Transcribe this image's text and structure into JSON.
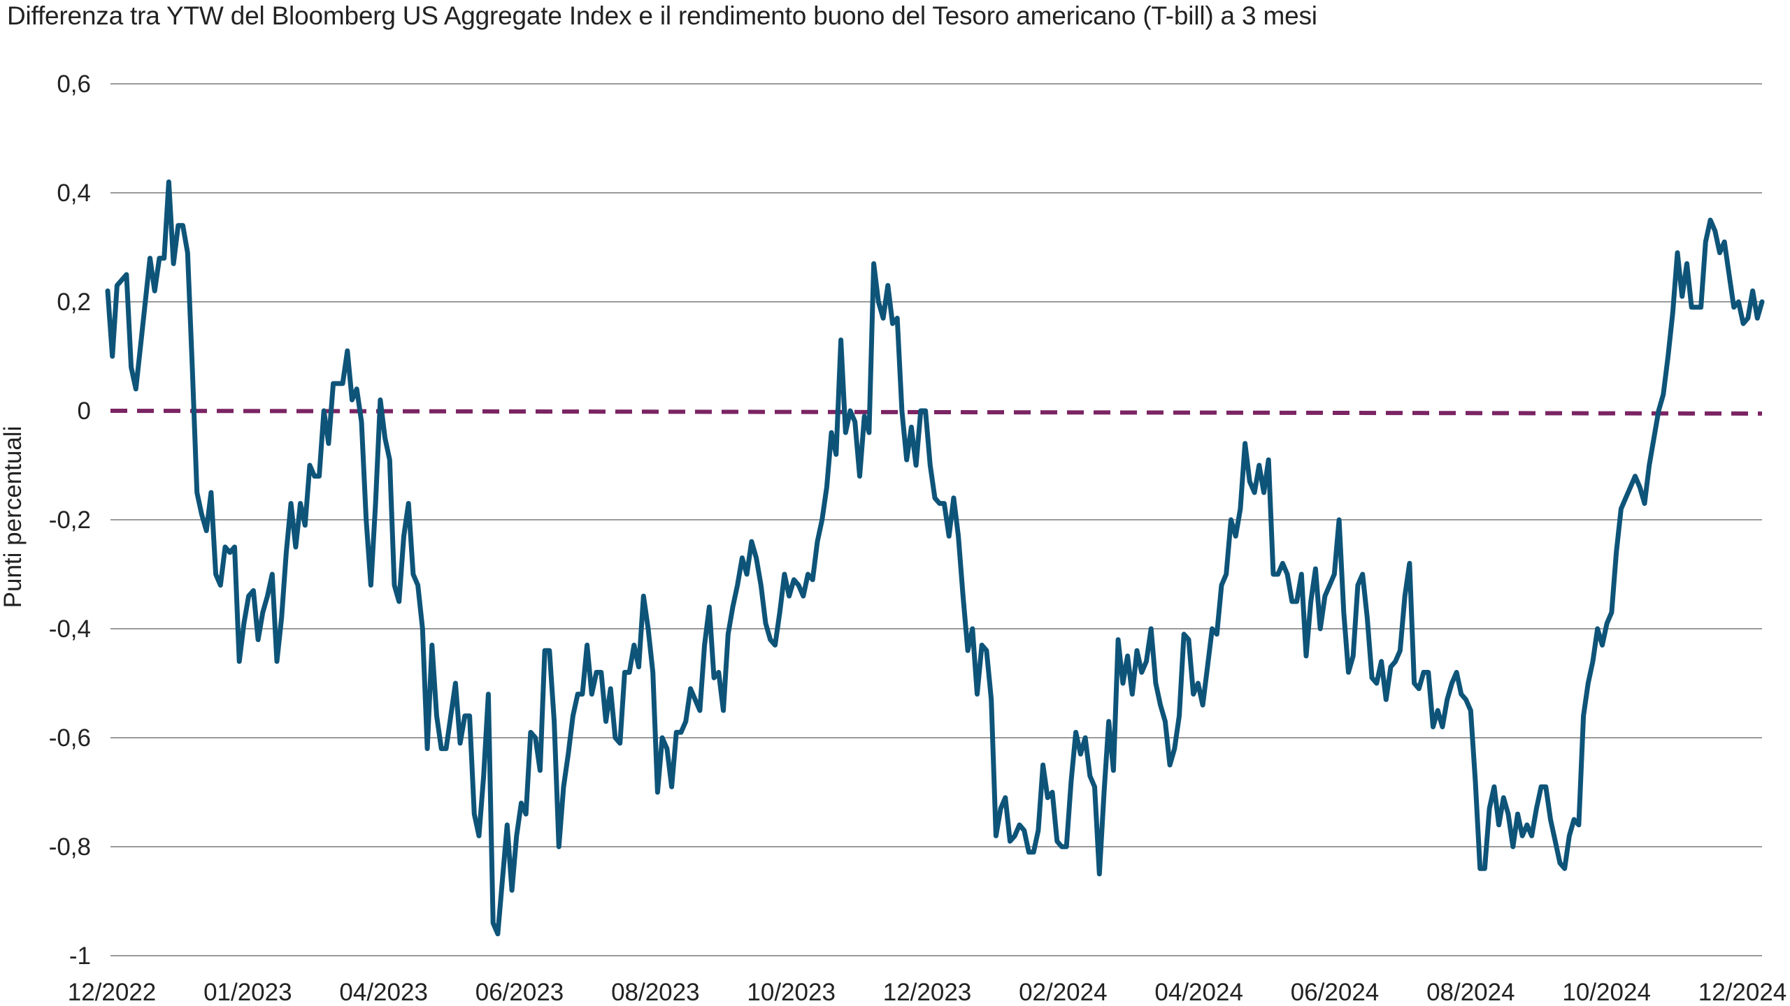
{
  "chart_data": {
    "type": "line",
    "title": "Differenza tra YTW del Bloomberg US Aggregate Index e il rendimento buono del Tesoro americano (T-bill) a 3 mesi",
    "ylabel": "Punti percentuali",
    "xlabel": "",
    "ylim": [
      -1,
      0.6
    ],
    "yticks": [
      0.6,
      0.4,
      0.2,
      0,
      -0.2,
      -0.4,
      -0.6,
      -0.8,
      -1
    ],
    "ytick_labels": [
      "0,6",
      "0,4",
      "0,2",
      "0",
      "-0,2",
      "-0,4",
      "-0,6",
      "-0,8",
      "-1"
    ],
    "xticks": [
      "12/2022",
      "01/2023",
      "04/2023",
      "06/2023",
      "08/2023",
      "10/2023",
      "12/2023",
      "02/2024",
      "04/2024",
      "06/2024",
      "08/2024",
      "10/2024",
      "12/2024"
    ],
    "grid": true,
    "colors": {
      "series": "#0e5479",
      "reference": "#7b2463",
      "grid": "#9a9a9a"
    },
    "reference_line": {
      "y": 0,
      "style": "dashed"
    },
    "series": [
      {
        "values": [
          0.22,
          0.1,
          0.23,
          0.24,
          0.25,
          0.08,
          0.04,
          0.12,
          0.2,
          0.28,
          0.22,
          0.28,
          0.28,
          0.42,
          0.27,
          0.34,
          0.34,
          0.29,
          0.08,
          -0.15,
          -0.19,
          -0.22,
          -0.15,
          -0.3,
          -0.32,
          -0.25,
          -0.26,
          -0.25,
          -0.46,
          -0.39,
          -0.34,
          -0.33,
          -0.42,
          -0.37,
          -0.34,
          -0.3,
          -0.46,
          -0.38,
          -0.26,
          -0.17,
          -0.25,
          -0.17,
          -0.21,
          -0.1,
          -0.12,
          -0.12,
          0.0,
          -0.06,
          0.05,
          0.05,
          0.05,
          0.11,
          0.02,
          0.04,
          -0.02,
          -0.2,
          -0.32,
          -0.17,
          0.02,
          -0.05,
          -0.09,
          -0.32,
          -0.35,
          -0.23,
          -0.17,
          -0.3,
          -0.32,
          -0.4,
          -0.62,
          -0.43,
          -0.56,
          -0.62,
          -0.62,
          -0.56,
          -0.5,
          -0.61,
          -0.56,
          -0.56,
          -0.74,
          -0.78,
          -0.67,
          -0.52,
          -0.94,
          -0.96,
          -0.86,
          -0.76,
          -0.88,
          -0.78,
          -0.72,
          -0.74,
          -0.59,
          -0.6,
          -0.66,
          -0.44,
          -0.44,
          -0.57,
          -0.8,
          -0.69,
          -0.63,
          -0.56,
          -0.52,
          -0.52,
          -0.43,
          -0.52,
          -0.48,
          -0.48,
          -0.57,
          -0.51,
          -0.6,
          -0.61,
          -0.48,
          -0.48,
          -0.43,
          -0.47,
          -0.34,
          -0.4,
          -0.48,
          -0.7,
          -0.6,
          -0.62,
          -0.69,
          -0.59,
          -0.59,
          -0.57,
          -0.51,
          -0.53,
          -0.55,
          -0.43,
          -0.36,
          -0.49,
          -0.48,
          -0.55,
          -0.41,
          -0.36,
          -0.32,
          -0.27,
          -0.3,
          -0.24,
          -0.27,
          -0.32,
          -0.39,
          -0.42,
          -0.43,
          -0.37,
          -0.3,
          -0.34,
          -0.31,
          -0.32,
          -0.34,
          -0.3,
          -0.31,
          -0.24,
          -0.2,
          -0.14,
          -0.04,
          -0.08,
          0.13,
          -0.04,
          0.0,
          -0.02,
          -0.12,
          -0.01,
          -0.04,
          0.27,
          0.2,
          0.17,
          0.23,
          0.16,
          0.17,
          0.0,
          -0.09,
          -0.03,
          -0.1,
          0.0,
          0.0,
          -0.1,
          -0.16,
          -0.17,
          -0.17,
          -0.23,
          -0.16,
          -0.23,
          -0.34,
          -0.44,
          -0.4,
          -0.52,
          -0.43,
          -0.44,
          -0.53,
          -0.78,
          -0.73,
          -0.71,
          -0.79,
          -0.78,
          -0.76,
          -0.77,
          -0.81,
          -0.81,
          -0.77,
          -0.65,
          -0.71,
          -0.7,
          -0.79,
          -0.8,
          -0.8,
          -0.68,
          -0.59,
          -0.63,
          -0.6,
          -0.67,
          -0.69,
          -0.85,
          -0.7,
          -0.57,
          -0.66,
          -0.42,
          -0.5,
          -0.45,
          -0.52,
          -0.44,
          -0.48,
          -0.46,
          -0.4,
          -0.5,
          -0.54,
          -0.57,
          -0.65,
          -0.62,
          -0.56,
          -0.41,
          -0.42,
          -0.52,
          -0.5,
          -0.54,
          -0.47,
          -0.4,
          -0.41,
          -0.32,
          -0.3,
          -0.2,
          -0.23,
          -0.18,
          -0.06,
          -0.13,
          -0.15,
          -0.1,
          -0.15,
          -0.09,
          -0.3,
          -0.3,
          -0.28,
          -0.3,
          -0.35,
          -0.35,
          -0.3,
          -0.45,
          -0.35,
          -0.29,
          -0.4,
          -0.34,
          -0.32,
          -0.3,
          -0.2,
          -0.37,
          -0.48,
          -0.45,
          -0.32,
          -0.3,
          -0.38,
          -0.49,
          -0.5,
          -0.46,
          -0.53,
          -0.47,
          -0.46,
          -0.44,
          -0.34,
          -0.28,
          -0.5,
          -0.51,
          -0.48,
          -0.48,
          -0.58,
          -0.55,
          -0.58,
          -0.53,
          -0.5,
          -0.48,
          -0.52,
          -0.53,
          -0.55,
          -0.68,
          -0.84,
          -0.84,
          -0.73,
          -0.69,
          -0.76,
          -0.71,
          -0.74,
          -0.8,
          -0.74,
          -0.78,
          -0.76,
          -0.78,
          -0.73,
          -0.69,
          -0.69,
          -0.75,
          -0.79,
          -0.83,
          -0.84,
          -0.78,
          -0.75,
          -0.76,
          -0.56,
          -0.5,
          -0.46,
          -0.4,
          -0.43,
          -0.39,
          -0.37,
          -0.26,
          -0.18,
          -0.16,
          -0.14,
          -0.12,
          -0.14,
          -0.17,
          -0.1,
          -0.05,
          0.0,
          0.03,
          0.1,
          0.18,
          0.29,
          0.21,
          0.27,
          0.19,
          0.19,
          0.19,
          0.31,
          0.35,
          0.33,
          0.29,
          0.31,
          0.25,
          0.19,
          0.2,
          0.16,
          0.17,
          0.22,
          0.17,
          0.2
        ]
      }
    ]
  }
}
